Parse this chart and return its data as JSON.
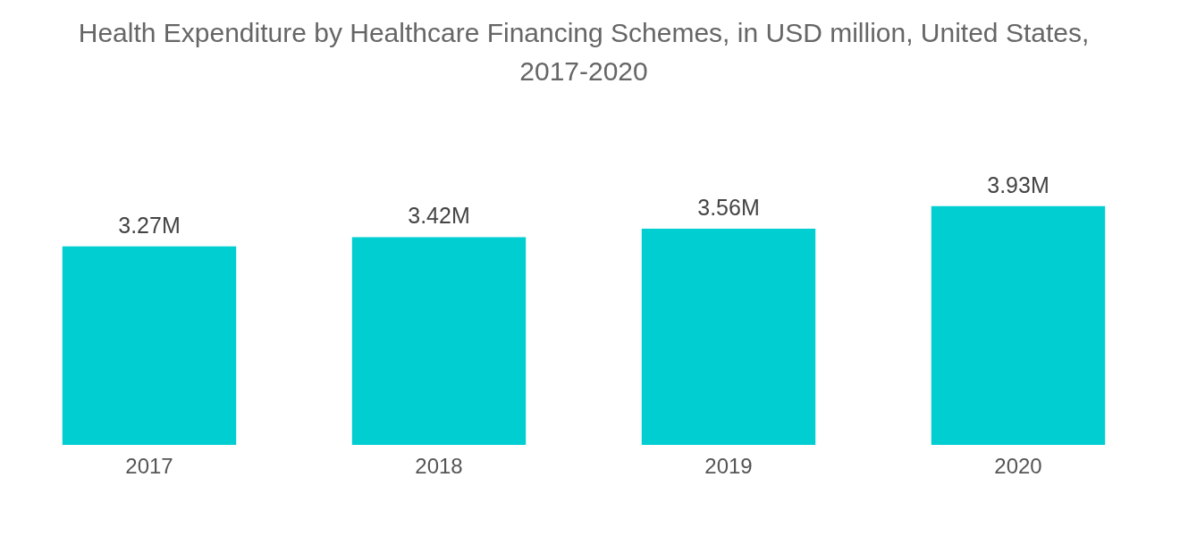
{
  "chart_data": {
    "type": "bar",
    "title": "Health Expenditure by Healthcare Financing Schemes, in USD million, United States, 2017-2020",
    "categories": [
      "2017",
      "2018",
      "2019",
      "2020"
    ],
    "values": [
      3.27,
      3.42,
      3.56,
      3.93
    ],
    "value_labels": [
      "3.27M",
      "3.42M",
      "3.56M",
      "3.93M"
    ],
    "color": "#00ced1",
    "tick_labels": "x"
  }
}
